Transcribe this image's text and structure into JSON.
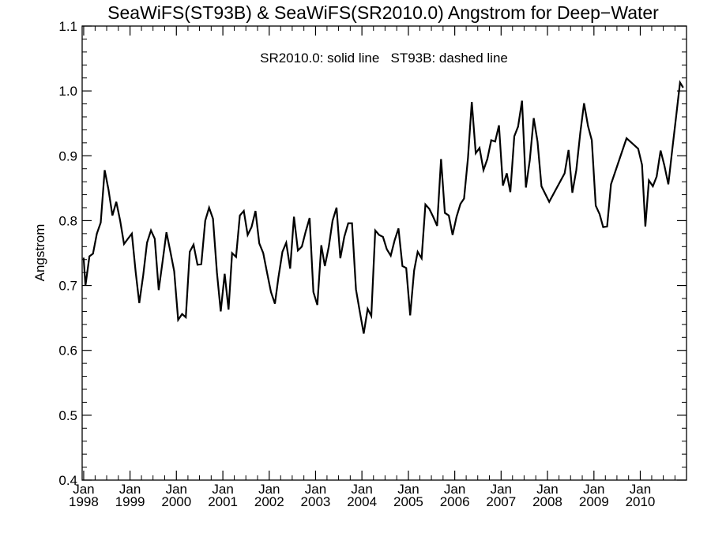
{
  "chart_data": {
    "type": "line",
    "title": "SeaWiFS(ST93B) & SeaWiFS(SR2010.0)  Angstrom for Deep−Water",
    "annotation": "SR2010.0: solid line   ST93B: dashed line",
    "xlabel": "",
    "ylabel": "Angstrom",
    "ylim": [
      0.4,
      1.1
    ],
    "xlim": [
      "1997-12-20",
      "2010-12-31"
    ],
    "y_ticks": [
      "0.4",
      "0.5",
      "0.6",
      "0.7",
      "0.8",
      "0.9",
      "1.0",
      "1.1"
    ],
    "x_ticks": [
      {
        "date": "1998-01-01",
        "top": "Jan",
        "bottom": "1998"
      },
      {
        "date": "1999-01-01",
        "top": "Jan",
        "bottom": "1999"
      },
      {
        "date": "2000-01-01",
        "top": "Jan",
        "bottom": "2000"
      },
      {
        "date": "2001-01-01",
        "top": "Jan",
        "bottom": "2001"
      },
      {
        "date": "2002-01-01",
        "top": "Jan",
        "bottom": "2002"
      },
      {
        "date": "2003-01-01",
        "top": "Jan",
        "bottom": "2003"
      },
      {
        "date": "2004-01-01",
        "top": "Jan",
        "bottom": "2004"
      },
      {
        "date": "2005-01-01",
        "top": "Jan",
        "bottom": "2005"
      },
      {
        "date": "2006-01-01",
        "top": "Jan",
        "bottom": "2006"
      },
      {
        "date": "2007-01-01",
        "top": "Jan",
        "bottom": "2007"
      },
      {
        "date": "2008-01-01",
        "top": "Jan",
        "bottom": "2008"
      },
      {
        "date": "2009-01-01",
        "top": "Jan",
        "bottom": "2009"
      },
      {
        "date": "2010-01-01",
        "top": "Jan",
        "bottom": "2010"
      }
    ],
    "grid": false,
    "series": [
      {
        "name": "SR2010.0",
        "style": "solid",
        "color": "#000000",
        "points": [
          [
            "1997-12-31",
            0.743
          ],
          [
            "1998-01-15",
            0.7
          ],
          [
            "1998-02-15",
            0.745
          ],
          [
            "1998-03-15",
            0.749
          ],
          [
            "1998-04-15",
            0.78
          ],
          [
            "1998-05-15",
            0.797
          ],
          [
            "1998-06-15",
            0.878
          ],
          [
            "1998-07-15",
            0.848
          ],
          [
            "1998-08-15",
            0.808
          ],
          [
            "1998-09-15",
            0.829
          ],
          [
            "1998-10-15",
            0.8
          ],
          [
            "1998-11-15",
            0.764
          ],
          [
            "1998-12-15",
            0.772
          ],
          [
            "1999-01-15",
            0.78
          ],
          [
            "1999-02-15",
            0.72
          ],
          [
            "1999-03-15",
            0.673
          ],
          [
            "1999-04-15",
            0.716
          ],
          [
            "1999-05-15",
            0.766
          ],
          [
            "1999-06-15",
            0.785
          ],
          [
            "1999-07-15",
            0.772
          ],
          [
            "1999-08-15",
            0.693
          ],
          [
            "1999-09-15",
            0.738
          ],
          [
            "1999-10-15",
            0.782
          ],
          [
            "1999-11-15",
            0.752
          ],
          [
            "1999-12-15",
            0.722
          ],
          [
            "2000-01-15",
            0.647
          ],
          [
            "2000-02-15",
            0.656
          ],
          [
            "2000-03-15",
            0.651
          ],
          [
            "2000-04-15",
            0.752
          ],
          [
            "2000-05-15",
            0.763
          ],
          [
            "2000-06-15",
            0.732
          ],
          [
            "2000-07-15",
            0.733
          ],
          [
            "2000-08-15",
            0.8
          ],
          [
            "2000-09-15",
            0.82
          ],
          [
            "2000-10-15",
            0.803
          ],
          [
            "2000-11-15",
            0.72
          ],
          [
            "2000-12-15",
            0.66
          ],
          [
            "2001-01-15",
            0.718
          ],
          [
            "2001-02-15",
            0.663
          ],
          [
            "2001-03-15",
            0.75
          ],
          [
            "2001-04-15",
            0.744
          ],
          [
            "2001-05-15",
            0.808
          ],
          [
            "2001-06-15",
            0.815
          ],
          [
            "2001-07-15",
            0.778
          ],
          [
            "2001-08-15",
            0.79
          ],
          [
            "2001-09-15",
            0.815
          ],
          [
            "2001-10-15",
            0.765
          ],
          [
            "2001-11-15",
            0.75
          ],
          [
            "2001-12-15",
            0.72
          ],
          [
            "2002-01-15",
            0.69
          ],
          [
            "2002-02-15",
            0.672
          ],
          [
            "2002-03-15",
            0.713
          ],
          [
            "2002-04-15",
            0.752
          ],
          [
            "2002-05-15",
            0.766
          ],
          [
            "2002-06-15",
            0.726
          ],
          [
            "2002-07-15",
            0.806
          ],
          [
            "2002-08-15",
            0.754
          ],
          [
            "2002-09-15",
            0.76
          ],
          [
            "2002-10-15",
            0.783
          ],
          [
            "2002-11-15",
            0.804
          ],
          [
            "2002-12-15",
            0.69
          ],
          [
            "2003-01-15",
            0.67
          ],
          [
            "2003-02-15",
            0.762
          ],
          [
            "2003-03-15",
            0.73
          ],
          [
            "2003-04-15",
            0.76
          ],
          [
            "2003-05-15",
            0.8
          ],
          [
            "2003-06-15",
            0.82
          ],
          [
            "2003-07-15",
            0.742
          ],
          [
            "2003-08-15",
            0.775
          ],
          [
            "2003-09-15",
            0.796
          ],
          [
            "2003-10-15",
            0.796
          ],
          [
            "2003-11-15",
            0.694
          ],
          [
            "2003-12-15",
            0.66
          ],
          [
            "2004-01-15",
            0.626
          ],
          [
            "2004-02-15",
            0.664
          ],
          [
            "2004-03-15",
            0.653
          ],
          [
            "2004-04-15",
            0.785
          ],
          [
            "2004-05-15",
            0.778
          ],
          [
            "2004-06-15",
            0.775
          ],
          [
            "2004-07-15",
            0.756
          ],
          [
            "2004-08-15",
            0.746
          ],
          [
            "2004-09-15",
            0.77
          ],
          [
            "2004-10-15",
            0.788
          ],
          [
            "2004-11-15",
            0.73
          ],
          [
            "2004-12-15",
            0.727
          ],
          [
            "2005-01-15",
            0.654
          ],
          [
            "2005-02-15",
            0.723
          ],
          [
            "2005-03-15",
            0.752
          ],
          [
            "2005-04-15",
            0.742
          ],
          [
            "2005-05-15",
            0.825
          ],
          [
            "2005-06-15",
            0.818
          ],
          [
            "2005-07-15",
            0.806
          ],
          [
            "2005-08-15",
            0.792
          ],
          [
            "2005-09-15",
            0.895
          ],
          [
            "2005-10-15",
            0.812
          ],
          [
            "2005-11-15",
            0.808
          ],
          [
            "2005-12-15",
            0.778
          ],
          [
            "2006-01-15",
            0.806
          ],
          [
            "2006-02-15",
            0.826
          ],
          [
            "2006-03-15",
            0.834
          ],
          [
            "2006-04-15",
            0.897
          ],
          [
            "2006-05-15",
            0.983
          ],
          [
            "2006-06-15",
            0.904
          ],
          [
            "2006-07-15",
            0.912
          ],
          [
            "2006-08-15",
            0.878
          ],
          [
            "2006-09-15",
            0.895
          ],
          [
            "2006-10-15",
            0.924
          ],
          [
            "2006-11-15",
            0.922
          ],
          [
            "2006-12-15",
            0.947
          ],
          [
            "2007-01-15",
            0.854
          ],
          [
            "2007-02-15",
            0.873
          ],
          [
            "2007-03-15",
            0.844
          ],
          [
            "2007-04-15",
            0.93
          ],
          [
            "2007-05-15",
            0.945
          ],
          [
            "2007-06-15",
            0.985
          ],
          [
            "2007-07-15",
            0.851
          ],
          [
            "2007-08-15",
            0.893
          ],
          [
            "2007-09-15",
            0.958
          ],
          [
            "2007-10-15",
            0.922
          ],
          [
            "2007-11-15",
            0.853
          ],
          [
            "2008-01-15",
            0.829
          ],
          [
            "2008-05-15",
            0.873
          ],
          [
            "2008-06-15",
            0.909
          ],
          [
            "2008-07-15",
            0.843
          ],
          [
            "2008-08-15",
            0.878
          ],
          [
            "2008-09-15",
            0.935
          ],
          [
            "2008-10-15",
            0.981
          ],
          [
            "2008-11-15",
            0.946
          ],
          [
            "2008-12-15",
            0.924
          ],
          [
            "2009-01-15",
            0.823
          ],
          [
            "2009-02-15",
            0.81
          ],
          [
            "2009-03-15",
            0.79
          ],
          [
            "2009-04-15",
            0.791
          ],
          [
            "2009-05-15",
            0.856
          ],
          [
            "2009-09-15",
            0.927
          ],
          [
            "2009-12-15",
            0.911
          ],
          [
            "2010-01-15",
            0.886
          ],
          [
            "2010-02-10",
            0.791
          ],
          [
            "2010-03-10",
            0.862
          ],
          [
            "2010-04-10",
            0.853
          ],
          [
            "2010-05-10",
            0.868
          ],
          [
            "2010-06-10",
            0.908
          ],
          [
            "2010-07-10",
            0.885
          ],
          [
            "2010-08-10",
            0.856
          ],
          [
            "2010-09-10",
            0.91
          ],
          [
            "2010-10-10",
            0.96
          ],
          [
            "2010-11-10",
            1.013
          ],
          [
            "2010-12-05",
            1.005
          ]
        ]
      }
    ]
  }
}
